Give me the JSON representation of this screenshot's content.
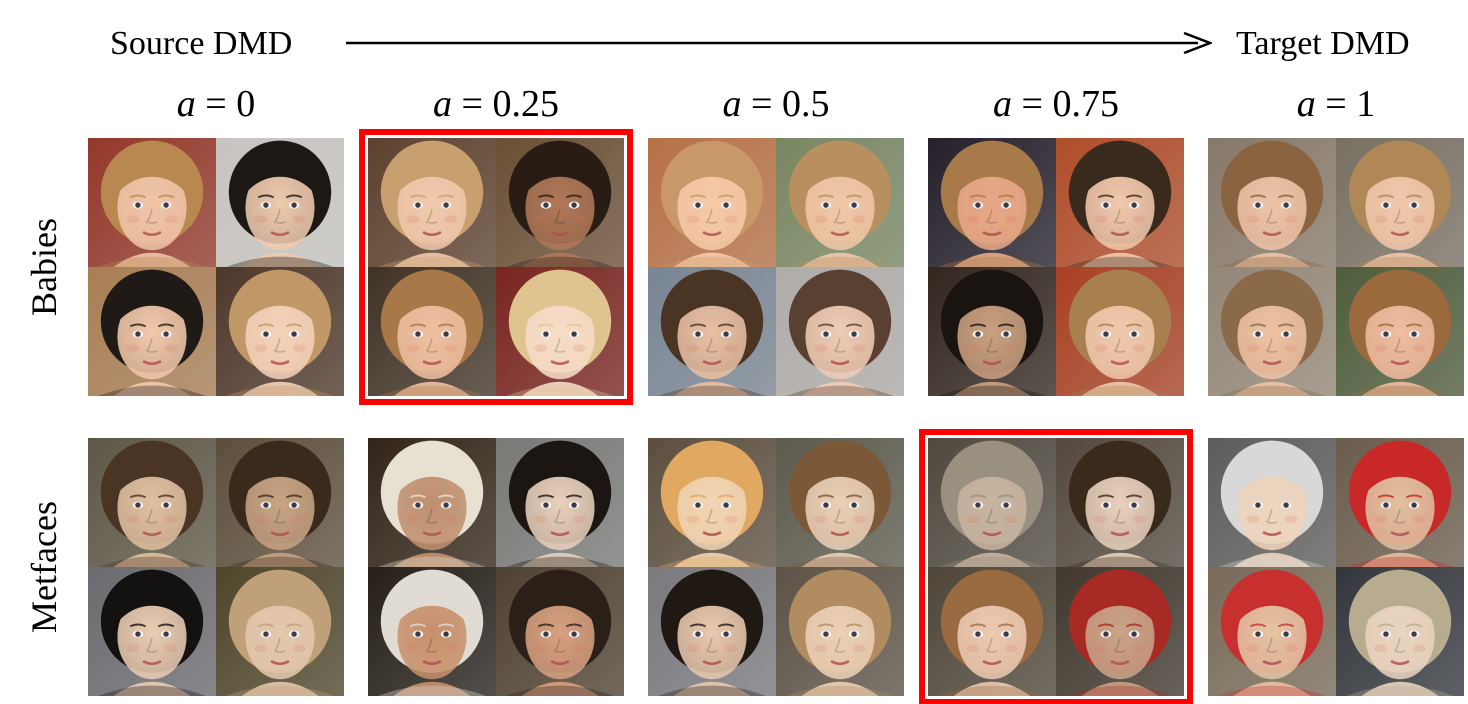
{
  "header": {
    "source_label": "Source DMD",
    "target_label": "Target DMD",
    "arrow_icon": "right-arrow-icon"
  },
  "columns": [
    {
      "var": "a",
      "eq": " = ",
      "value": "0"
    },
    {
      "var": "a",
      "eq": " = ",
      "value": "0.25"
    },
    {
      "var": "a",
      "eq": " = ",
      "value": "0.5"
    },
    {
      "var": "a",
      "eq": " = ",
      "value": "0.75"
    },
    {
      "var": "a",
      "eq": " = ",
      "value": "1"
    }
  ],
  "rows": [
    {
      "label": "Babies"
    },
    {
      "label": "Metfaces"
    }
  ],
  "highlight_color": "#ff0000",
  "grid": [
    [
      {
        "selected": false,
        "faces": [
          {
            "bg": "#a84030",
            "skin": "#f0c4a8",
            "hair": "#b88850"
          },
          {
            "bg": "#e4e0da",
            "skin": "#eecaae",
            "hair": "#1c1814"
          },
          {
            "bg": "#c09060",
            "skin": "#f2c8aa",
            "hair": "#201a16"
          },
          {
            "bg": "#5a4030",
            "skin": "#f4d2ba",
            "hair": "#c09868"
          }
        ]
      },
      {
        "selected": true,
        "faces": [
          {
            "bg": "#6a4a34",
            "skin": "#f0c8ac",
            "hair": "#c8a070"
          },
          {
            "bg": "#7a5a3c",
            "skin": "#b07858",
            "hair": "#281c14"
          },
          {
            "bg": "#4a3a2a",
            "skin": "#eec0a0",
            "hair": "#a87848"
          },
          {
            "bg": "#8a2a24",
            "skin": "#f6dcc8",
            "hair": "#e0c490"
          }
        ]
      },
      {
        "selected": false,
        "faces": [
          {
            "bg": "#d08050",
            "skin": "#f6caa8",
            "hair": "#c89868"
          },
          {
            "bg": "#8a9a70",
            "skin": "#f0c8a8",
            "hair": "#b89060"
          },
          {
            "bg": "#8a98a8",
            "skin": "#e8c0a4",
            "hair": "#4a3424"
          },
          {
            "bg": "#c8c4c0",
            "skin": "#f0ccb6",
            "hair": "#5a4030"
          }
        ]
      },
      {
        "selected": false,
        "faces": [
          {
            "bg": "#2a2430",
            "skin": "#e8a888",
            "hair": "#a87a4a"
          },
          {
            "bg": "#c85830",
            "skin": "#f2c8ac",
            "hair": "#3a2a1e"
          },
          {
            "bg": "#3a2c24",
            "skin": "#caa080",
            "hair": "#1a1410"
          },
          {
            "bg": "#c04a2a",
            "skin": "#f0c8ac",
            "hair": "#a88050"
          }
        ]
      },
      {
        "selected": false,
        "faces": [
          {
            "bg": "#9a8a78",
            "skin": "#eec4a8",
            "hair": "#8a6440"
          },
          {
            "bg": "#8a8070",
            "skin": "#f0c8ac",
            "hair": "#b08858"
          },
          {
            "bg": "#a89a88",
            "skin": "#eec2a4",
            "hair": "#8a6a48"
          },
          {
            "bg": "#5a6a44",
            "skin": "#eebca0",
            "hair": "#9a6a3c"
          }
        ]
      }
    ],
    [
      {
        "selected": false,
        "faces": [
          {
            "bg": "#6a6450",
            "skin": "#e0c0a0",
            "hair": "#4a3424"
          },
          {
            "bg": "#6a5a44",
            "skin": "#c8a484",
            "hair": "#3a2a1c"
          },
          {
            "bg": "#7a7a80",
            "skin": "#eaccb4",
            "hair": "#141210"
          },
          {
            "bg": "#5a5030",
            "skin": "#e4c8ae",
            "hair": "#c0a078"
          }
        ]
      },
      {
        "selected": false,
        "faces": [
          {
            "bg": "#3a2a1c",
            "skin": "#c09070",
            "hair": "#e8e0d0"
          },
          {
            "bg": "#8a8a88",
            "skin": "#e8d0bc",
            "hair": "#1c1612"
          },
          {
            "bg": "#2a241c",
            "skin": "#c8906c",
            "hair": "#e0dcd4"
          },
          {
            "bg": "#5a4a38",
            "skin": "#d8a080",
            "hair": "#2a2018"
          }
        ]
      },
      {
        "selected": false,
        "faces": [
          {
            "bg": "#6a5a48",
            "skin": "#f0d4b4",
            "hair": "#e0a860"
          },
          {
            "bg": "#6a6858",
            "skin": "#ead0b8",
            "hair": "#7a5838"
          },
          {
            "bg": "#8a8a90",
            "skin": "#e8c8ae",
            "hair": "#201812"
          },
          {
            "bg": "#6a5e50",
            "skin": "#ecd0b6",
            "hair": "#b08c60"
          }
        ]
      },
      {
        "selected": true,
        "faces": [
          {
            "bg": "#5a5448",
            "skin": "#c8b4a0",
            "hair": "#9a9080"
          },
          {
            "bg": "#605448",
            "skin": "#e8d0bc",
            "hair": "#3a2a1c"
          },
          {
            "bg": "#5a5040",
            "skin": "#eccab2",
            "hair": "#9a6a40"
          },
          {
            "bg": "#4a4034",
            "skin": "#c8a488",
            "hair": "#a82a24"
          }
        ]
      },
      {
        "selected": false,
        "faces": [
          {
            "bg": "#6a6a68",
            "skin": "#eed4bc",
            "hair": "#d8d8d8"
          },
          {
            "bg": "#7a6a58",
            "skin": "#e0c0a0",
            "hair": "#c82828"
          },
          {
            "bg": "#8a7a64",
            "skin": "#e4c4a4",
            "hair": "#c83030"
          },
          {
            "bg": "#3a3e44",
            "skin": "#ead4c0",
            "hair": "#b8ac90"
          }
        ]
      }
    ]
  ]
}
